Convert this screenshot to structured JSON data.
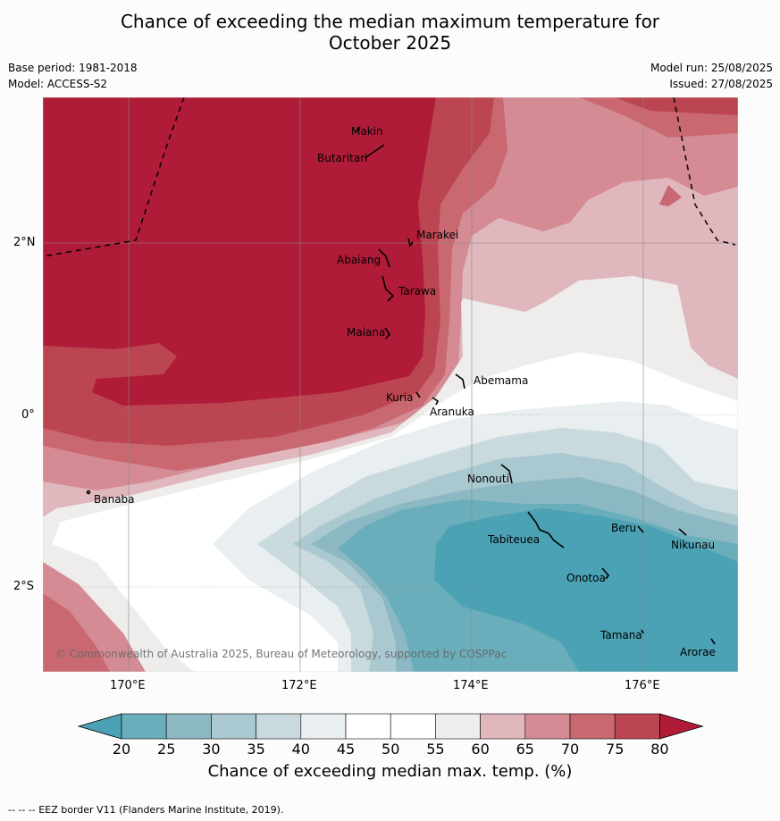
{
  "title_line1": "Chance of exceeding the median maximum temperature for",
  "title_line2": "October 2025",
  "base_period": "Base period: 1981-2018",
  "model": "Model: ACCESS-S2",
  "model_run": "Model run: 25/08/2025",
  "issued": "Issued: 27/08/2025",
  "lat_labels": [
    "2°N",
    "0°",
    "2°S"
  ],
  "lon_labels": [
    "170°E",
    "172°E",
    "174°E",
    "176°E"
  ],
  "islands": [
    "Makin",
    "Butaritari",
    "Marakei",
    "Abaiang",
    "Tarawa",
    "Maiana",
    "Abemama",
    "Kuria",
    "Aranuka",
    "Nonouti",
    "Banaba",
    "Tabiteuea",
    "Beru",
    "Nikunau",
    "Onotoa",
    "Tamana",
    "Arorae"
  ],
  "copyright": "© Commonwealth of Australia 2025, Bureau of Meteorology, supported by COSPPac",
  "colorbar": {
    "ticks": [
      "20",
      "25",
      "30",
      "35",
      "40",
      "45",
      "50",
      "55",
      "60",
      "65",
      "70",
      "75",
      "80"
    ],
    "colors": [
      "#6aaebb",
      "#8cb8c4",
      "#a9c8cf",
      "#c9dade",
      "#e9eef0",
      "#ffffff",
      "#ffffff",
      "#eeedec",
      "#e0b7bd",
      "#d48b94",
      "#c96870",
      "#bc4552"
    ],
    "low_color": "#4aa2b4",
    "high_color": "#b01c38",
    "label": "Chance of exceeding median max. temp. (%)"
  },
  "footnote": "--  --  -- EEZ border V11 (Flanders Marine Institute, 2019)."
}
